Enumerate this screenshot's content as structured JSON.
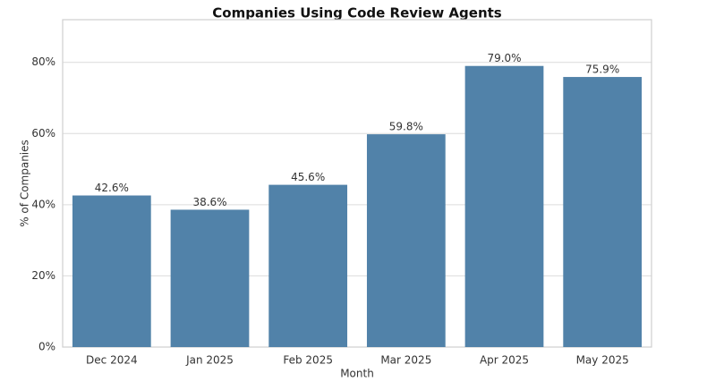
{
  "chart_data": {
    "type": "bar",
    "title": "Companies Using Code Review Agents",
    "x_label": "Month",
    "y_label": "% of Companies",
    "categories": [
      "Dec 2024",
      "Jan 2025",
      "Feb 2025",
      "Mar 2025",
      "Apr 2025",
      "May 2025"
    ],
    "values": [
      42.6,
      38.6,
      45.6,
      59.8,
      79.0,
      75.9
    ],
    "value_labels": [
      "42.6%",
      "38.6%",
      "45.6%",
      "59.8%",
      "79.0%",
      "75.9%"
    ],
    "color": "#5182a9",
    "ylim": [
      0,
      92
    ],
    "yticks": [
      {
        "value": 0,
        "label": "0%"
      },
      {
        "value": 20,
        "label": "20%"
      },
      {
        "value": 40,
        "label": "40%"
      },
      {
        "value": 60,
        "label": "60%"
      },
      {
        "value": 80,
        "label": "80%"
      }
    ],
    "grid": true
  }
}
